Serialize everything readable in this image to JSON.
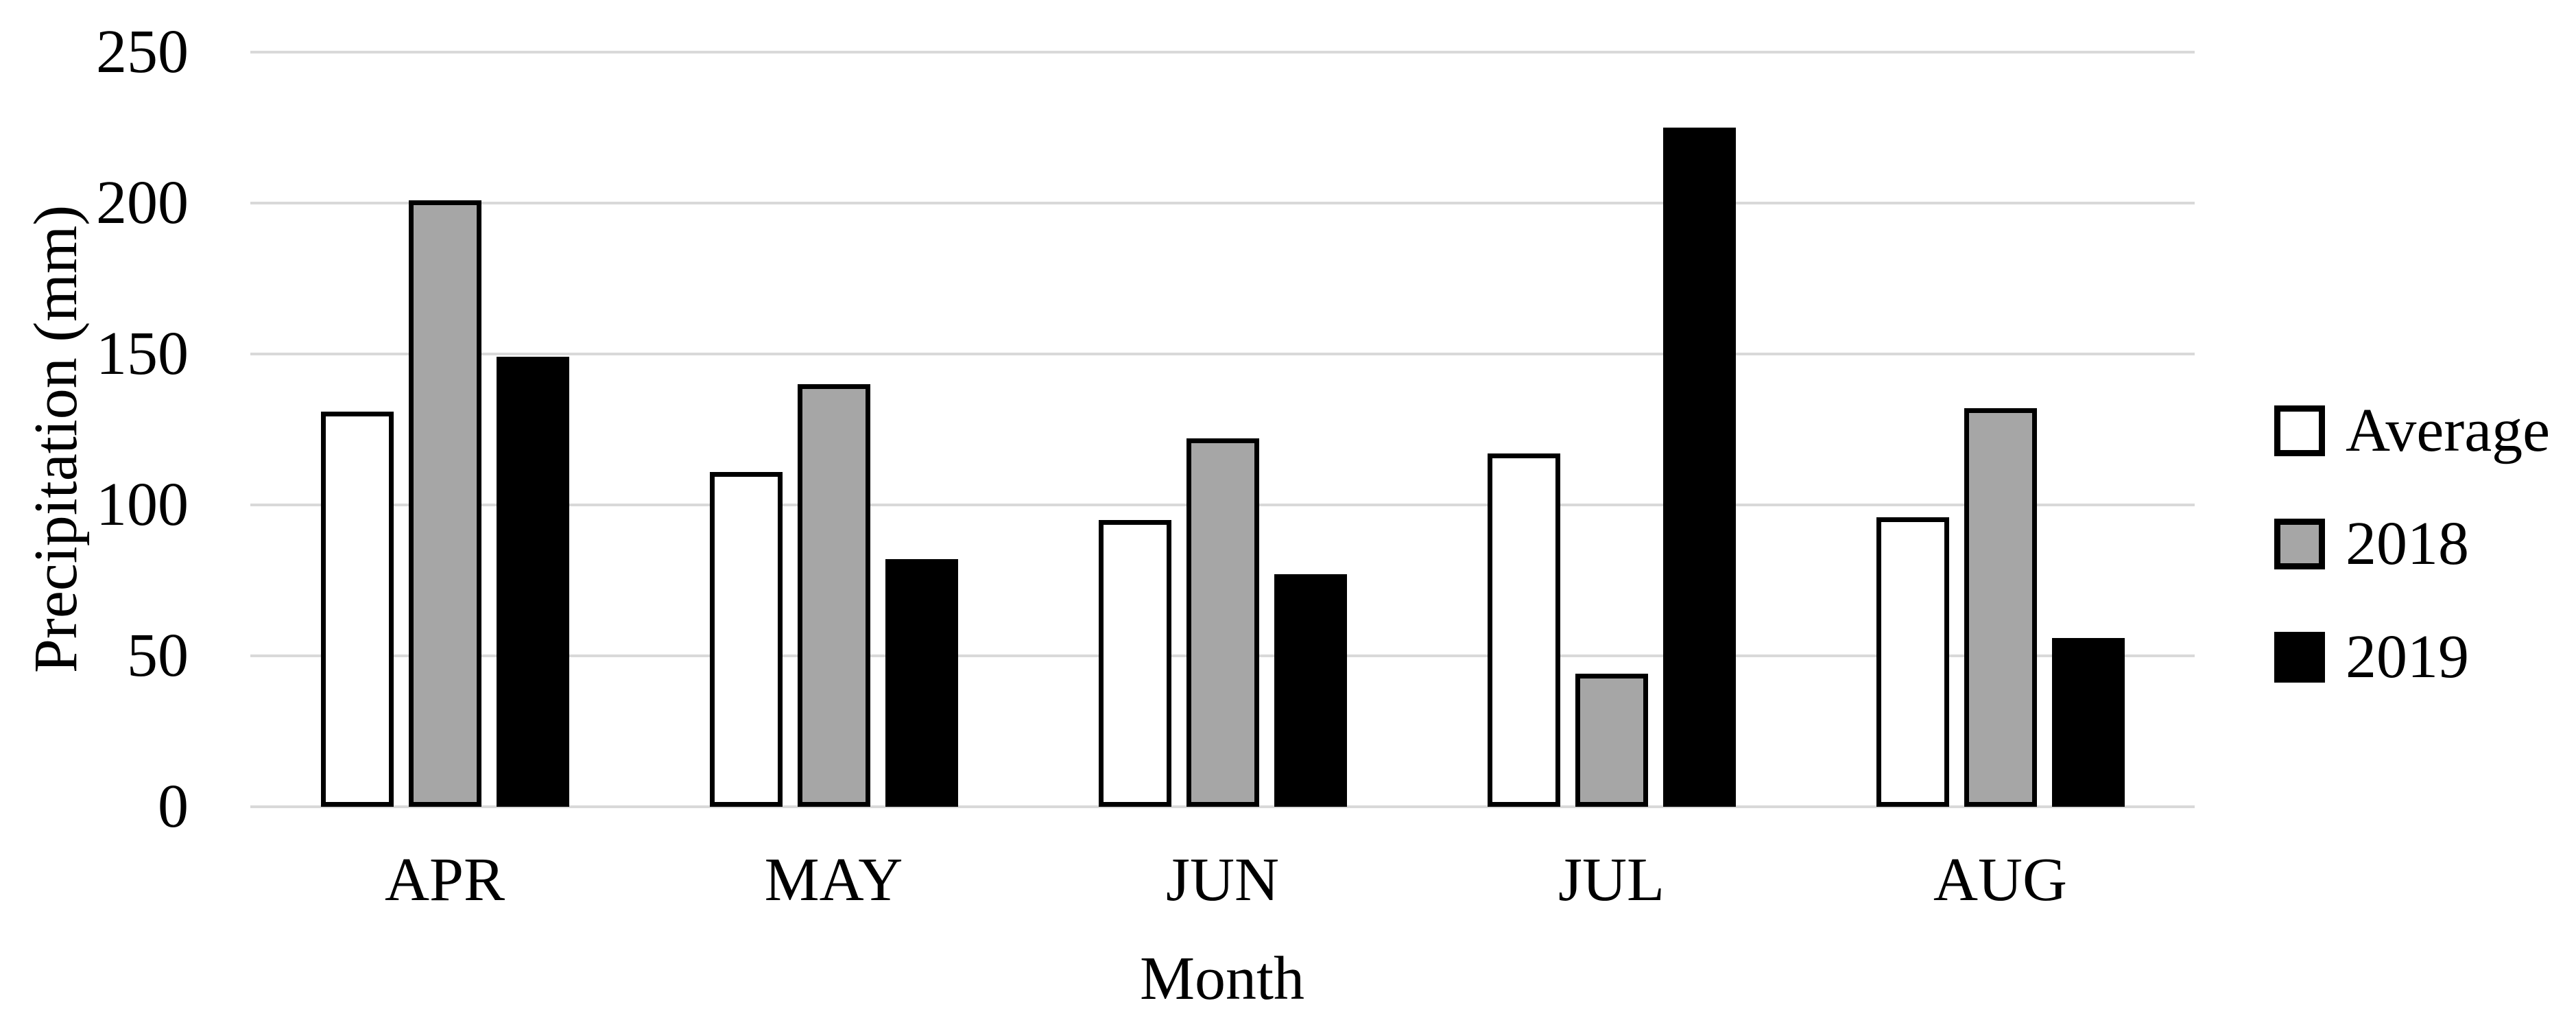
{
  "chart_data": {
    "type": "bar",
    "title": "",
    "categories": [
      "APR",
      "MAY",
      "JUN",
      "JUL",
      "AUG"
    ],
    "series": [
      {
        "name": "Average",
        "fill": "#ffffff",
        "border": "#000000",
        "values": [
          131,
          111,
          95,
          117,
          96
        ]
      },
      {
        "name": "2018",
        "fill": "#a6a6a6",
        "border": "#000000",
        "values": [
          201,
          140,
          122,
          44,
          132
        ]
      },
      {
        "name": "2019",
        "fill": "#000000",
        "border": "#000000",
        "values": [
          149,
          82,
          77,
          225,
          56
        ]
      }
    ],
    "xlabel": "Month",
    "ylabel": "Precipitation (mm)",
    "ylim": [
      0,
      250
    ],
    "ytick_interval": 50,
    "yticks": [
      "0",
      "50",
      "100",
      "150",
      "200",
      "250"
    ],
    "grid": true,
    "legend_position": "right",
    "colors": {
      "gridline": "#d9d9d9",
      "text": "#000000",
      "background": "#ffffff"
    }
  }
}
